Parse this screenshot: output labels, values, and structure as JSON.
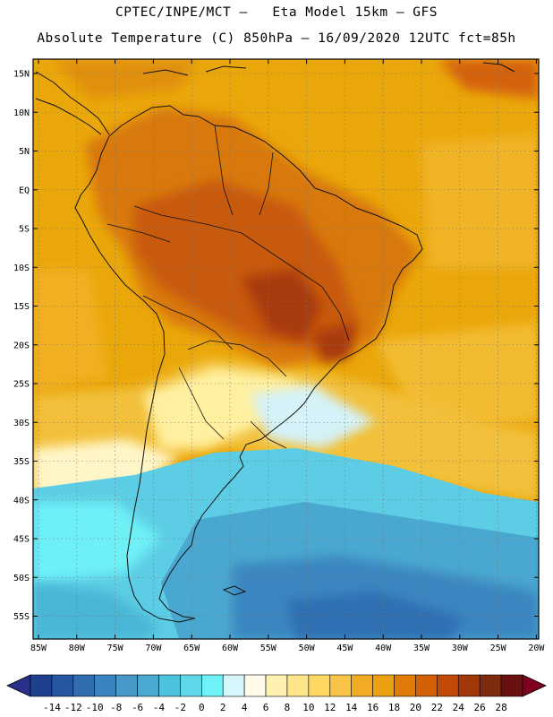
{
  "title_line1": "CPTEC/INPE/MCT –   Eta Model 15km – GFS",
  "title_line2": "Absolute Temperature (C) 850hPa – 16/09/2020 12UTC fct=85h",
  "lat_ticks": [
    "15N",
    "10N",
    "5N",
    "EQ",
    "5S",
    "10S",
    "15S",
    "20S",
    "25S",
    "30S",
    "35S",
    "40S",
    "45S",
    "50S",
    "55S"
  ],
  "lon_ticks": [
    "85W",
    "80W",
    "75W",
    "70W",
    "65W",
    "60W",
    "55W",
    "50W",
    "45W",
    "40W",
    "35W",
    "30W",
    "25W",
    "20W"
  ],
  "colorbar": {
    "labels": [
      "-14",
      "-12",
      "-10",
      "-8",
      "-6",
      "-4",
      "-2",
      "0",
      "2",
      "4",
      "6",
      "8",
      "10",
      "12",
      "14",
      "16",
      "18",
      "20",
      "22",
      "24",
      "26",
      "28"
    ],
    "colors": [
      "#1f3f8f",
      "#2756a0",
      "#2f6db0",
      "#3a84c0",
      "#4898c8",
      "#4aa9d0",
      "#4cc2dc",
      "#5ed8e8",
      "#6ff2f6",
      "#d6f6fb",
      "#fffbe8",
      "#fff2b0",
      "#ffe58a",
      "#ffd864",
      "#f8c448",
      "#f2ab24",
      "#eaa010",
      "#e07b08",
      "#d46004",
      "#c04a06",
      "#a03808",
      "#7c2a10",
      "#6a1010"
    ],
    "under_color": "#2a2f8a",
    "over_color": "#800020"
  },
  "colors": {
    "tropical_base": "#e8a200",
    "ocean_warm": "#f0b020",
    "continent_hot": "#d8780a",
    "core_hot": "#c05010",
    "hottest": "#a83a0a",
    "cool_pale": "#fff0a0",
    "cold_blue": "#4ab6d6",
    "coldest": "#2e70b2"
  }
}
